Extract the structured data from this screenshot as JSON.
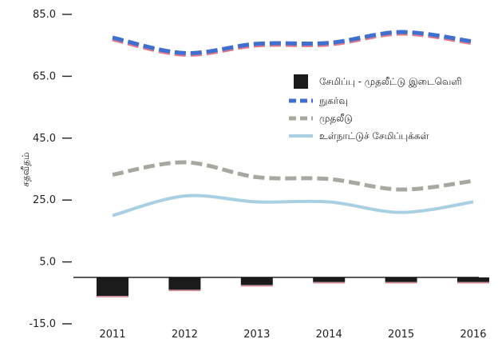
{
  "chart_data": {
    "type": "bar",
    "title": "",
    "xlabel": "",
    "ylabel": "சதவீதம்",
    "ylim": [
      -15,
      85
    ],
    "yticks": [
      "85.0",
      "65.0",
      "45.0",
      "25.0",
      "5.0",
      "-15.0"
    ],
    "yticks_values": [
      85,
      65,
      45,
      25,
      5,
      -15
    ],
    "categories": [
      "2011",
      "2012",
      "2013",
      "2014",
      "2015",
      "2016"
    ],
    "legend_position": "right",
    "grid": false,
    "series": [
      {
        "name": "சேமிப்பு - முதலீட்டு இடைவெளி",
        "type": "bar",
        "color": "#1b1b1b",
        "values": [
          -6.0,
          -4.0,
          -2.5,
          -1.5,
          -1.5,
          -1.5
        ]
      },
      {
        "name": "நுகர்வு",
        "type": "line",
        "style": "dashed",
        "color": "#3f6fcf",
        "values": [
          77.5,
          72.5,
          75.5,
          75.8,
          79.3,
          76.2
        ]
      },
      {
        "name": "முதலீடு",
        "type": "line",
        "style": "dashed",
        "color": "#a8a8a0",
        "values": [
          33.2,
          37.2,
          32.4,
          31.8,
          28.4,
          31.2
        ]
      },
      {
        "name": "உள்நாட்டுச் சேமிப்புக்கள்",
        "type": "line",
        "style": "solid",
        "color": "#a9cfe2",
        "values": [
          20.0,
          26.3,
          24.4,
          24.4,
          21.0,
          24.4
        ]
      }
    ]
  }
}
